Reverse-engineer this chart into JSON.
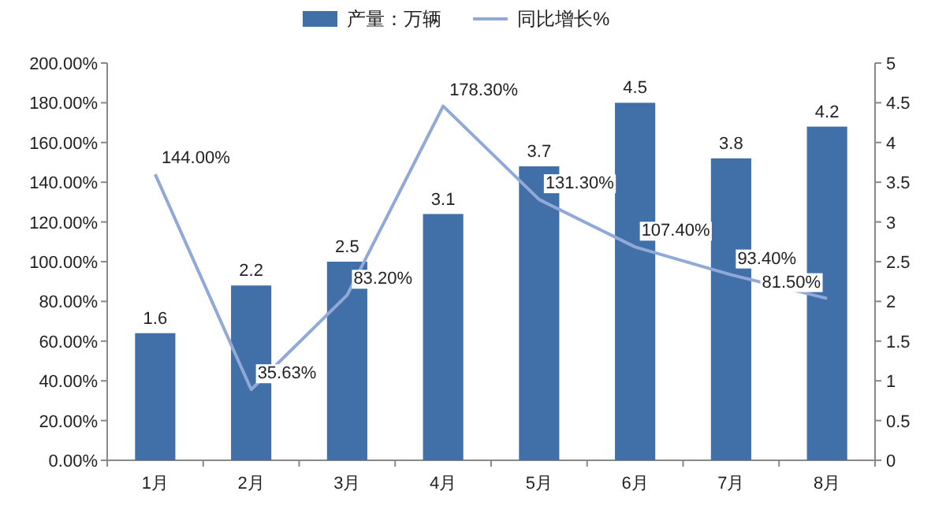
{
  "chart_data": {
    "type": "bar",
    "categories": [
      "1月",
      "2月",
      "3月",
      "4月",
      "5月",
      "6月",
      "7月",
      "8月"
    ],
    "series": [
      {
        "name": "产量：万辆",
        "axis": "y2",
        "color": "#4170a8",
        "values": [
          1.6,
          2.2,
          2.5,
          3.1,
          3.7,
          4.5,
          3.8,
          4.2
        ],
        "value_labels": [
          "1.6",
          "2.2",
          "2.5",
          "3.1",
          "3.7",
          "4.5",
          "3.8",
          "4.2"
        ]
      },
      {
        "name": "同比增长%",
        "type": "line",
        "axis": "y",
        "color": "#90a9d9",
        "values": [
          144.0,
          35.63,
          83.2,
          178.3,
          131.3,
          107.4,
          93.4,
          81.5
        ],
        "value_labels": [
          "144.00%",
          "35.63%",
          "83.20%",
          "178.30%",
          "131.30%",
          "107.40%",
          "93.40%",
          "81.50%"
        ]
      }
    ],
    "ylim": [
      0,
      200
    ],
    "yticks": [
      {
        "value": 0,
        "label": "0.00%"
      },
      {
        "value": 20,
        "label": "20.00%"
      },
      {
        "value": 40,
        "label": "40.00%"
      },
      {
        "value": 60,
        "label": "60.00%"
      },
      {
        "value": 80,
        "label": "80.00%"
      },
      {
        "value": 100,
        "label": "100.00%"
      },
      {
        "value": 120,
        "label": "120.00%"
      },
      {
        "value": 140,
        "label": "140.00%"
      },
      {
        "value": 160,
        "label": "160.00%"
      },
      {
        "value": 180,
        "label": "180.00%"
      },
      {
        "value": 200,
        "label": "200.00%"
      }
    ],
    "y2lim": [
      0,
      5
    ],
    "y2ticks": [
      0,
      0.5,
      1,
      1.5,
      2,
      2.5,
      3,
      3.5,
      4,
      4.5,
      5
    ],
    "legend": "top",
    "marker": "none",
    "line_style": "solid"
  }
}
